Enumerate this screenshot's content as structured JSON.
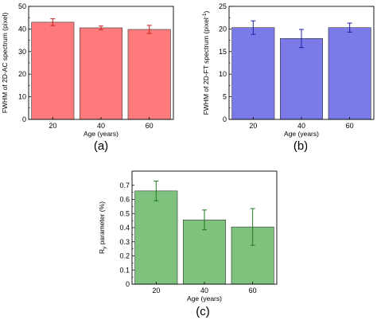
{
  "chart_data": [
    {
      "type": "bar",
      "panel_label": "(a)",
      "categories": [
        "20",
        "40",
        "60"
      ],
      "values": [
        43,
        40.5,
        39.8
      ],
      "errors": [
        1.5,
        0.8,
        1.8
      ],
      "xlabel": "Age (years)",
      "ylabel": "FWHM of 2D-AC spectrum (pixel)",
      "ylabel_sup": "",
      "ylim": [
        0,
        50
      ],
      "yticks": [
        0,
        10,
        20,
        30,
        40,
        50
      ],
      "ytick_labels": [
        "0",
        "10",
        "20",
        "30",
        "40",
        "50"
      ],
      "bar_color": "#ff7b7b",
      "error_color": "#c81e1e"
    },
    {
      "type": "bar",
      "panel_label": "(b)",
      "categories": [
        "20",
        "40",
        "60"
      ],
      "values": [
        20.3,
        17.9,
        20.3
      ],
      "errors": [
        1.5,
        2.0,
        1.0
      ],
      "xlabel": "Age (years)",
      "ylabel": "FWHM of 2D-FT spectrum (pixel",
      "ylabel_sup": "-1",
      "ylabel_suffix": ")",
      "ylim": [
        0,
        25
      ],
      "yticks": [
        0,
        5,
        10,
        15,
        20,
        25
      ],
      "ytick_labels": [
        "0",
        "5",
        "10",
        "15",
        "20",
        "25"
      ],
      "bar_color": "#7a7ae8",
      "error_color": "#2020a8"
    },
    {
      "type": "bar",
      "panel_label": "(c)",
      "categories": [
        "20",
        "40",
        "60"
      ],
      "values": [
        0.66,
        0.455,
        0.405
      ],
      "errors": [
        0.07,
        0.07,
        0.13
      ],
      "xlabel": "Age (years)",
      "ylabel": "R",
      "ylabel_sub": "y",
      "ylabel_suffix": " parameter (%)",
      "ylim": [
        0,
        0.8
      ],
      "yticks": [
        0,
        0.1,
        0.2,
        0.3,
        0.4,
        0.5,
        0.6,
        0.7
      ],
      "ytick_labels": [
        "0",
        "0.1",
        "0.2",
        "0.3",
        "0.4",
        "0.5",
        "0.6",
        "0.7"
      ],
      "bar_color": "#7ec27e",
      "error_color": "#1f7a1f"
    }
  ]
}
